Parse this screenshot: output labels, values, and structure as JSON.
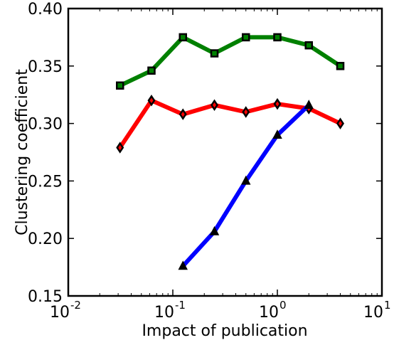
{
  "chart_data": {
    "type": "line",
    "title": "",
    "xlabel": "Impact of publication",
    "ylabel": "Clustering coefficient",
    "xscale": "log",
    "xlim": [
      0.01,
      10
    ],
    "ylim": [
      0.15,
      0.4
    ],
    "x_ticks": [
      {
        "base": "10",
        "exp": "-2",
        "value": 0.01
      },
      {
        "base": "10",
        "exp": "-1",
        "value": 0.1
      },
      {
        "base": "10",
        "exp": "0",
        "value": 1
      },
      {
        "base": "10",
        "exp": "1",
        "value": 10
      }
    ],
    "y_ticks": [
      "0.15",
      "0.20",
      "0.25",
      "0.30",
      "0.35",
      "0.40"
    ],
    "y_tick_values": [
      0.15,
      0.2,
      0.25,
      0.3,
      0.35,
      0.4
    ],
    "grid": false,
    "legend": "none",
    "series": [
      {
        "color": "#008000",
        "marker": "square",
        "x": [
          0.03125,
          0.0625,
          0.125,
          0.25,
          0.5,
          1,
          2,
          4
        ],
        "y": [
          0.333,
          0.346,
          0.375,
          0.361,
          0.375,
          0.375,
          0.368,
          0.35
        ]
      },
      {
        "color": "#ff0000",
        "marker": "diamond",
        "x": [
          0.03125,
          0.0625,
          0.125,
          0.25,
          0.5,
          1,
          2,
          4
        ],
        "y": [
          0.279,
          0.32,
          0.308,
          0.316,
          0.31,
          0.317,
          0.313,
          0.3
        ]
      },
      {
        "color": "#0000ff",
        "marker": "triangle",
        "x": [
          0.125,
          0.25,
          0.5,
          1,
          2
        ],
        "y": [
          0.176,
          0.206,
          0.25,
          0.29,
          0.316
        ]
      }
    ]
  }
}
